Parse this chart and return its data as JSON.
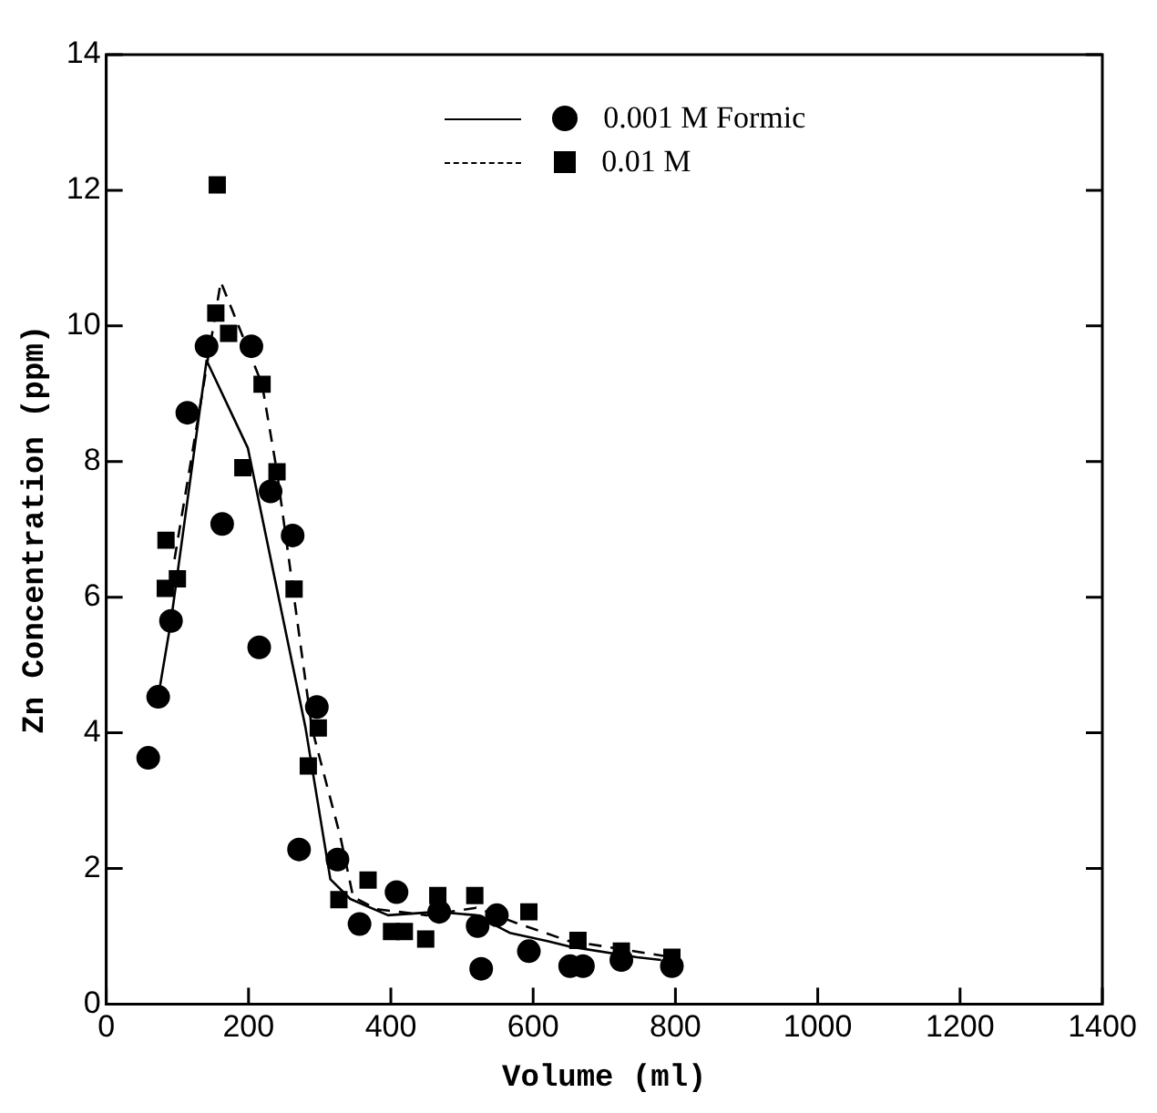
{
  "chart_data": {
    "type": "scatter",
    "xlabel": "Volume (ml)",
    "ylabel": "Zn Concentration (ppm)",
    "xlim": [
      0,
      1400
    ],
    "xticks": [
      0,
      200,
      400,
      600,
      800,
      1000,
      1200,
      1400
    ],
    "ylim": [
      0,
      14
    ],
    "yticks": [
      0,
      2,
      4,
      6,
      8,
      10,
      12,
      14
    ],
    "grid": false,
    "legend": "top right",
    "series": [
      {
        "name": "0.001 M Formic",
        "type": "scatter",
        "marker": "circle",
        "color": "#000000",
        "x": [
          59,
          73,
          91,
          114,
          141,
          163,
          204,
          215,
          231,
          262,
          271,
          296,
          325,
          356,
          408,
          468,
          522,
          527,
          549,
          594,
          652,
          670,
          724,
          795
        ],
        "values": [
          3.63,
          4.53,
          5.65,
          8.72,
          9.7,
          7.08,
          9.7,
          5.26,
          7.56,
          6.91,
          2.28,
          4.38,
          2.13,
          1.18,
          1.65,
          1.36,
          1.15,
          0.52,
          1.31,
          0.78,
          0.56,
          0.56,
          0.65,
          0.56
        ]
      },
      {
        "name": "0.01 M",
        "type": "scatter",
        "marker": "square",
        "color": "#000000",
        "x": [
          83,
          84,
          100,
          154,
          156,
          172,
          192,
          219,
          240,
          264,
          284,
          298,
          327,
          368,
          401,
          419,
          449,
          466,
          518,
          594,
          663,
          724,
          795
        ],
        "values": [
          6.13,
          6.84,
          6.27,
          10.19,
          12.08,
          9.89,
          7.91,
          9.14,
          7.85,
          6.12,
          3.51,
          4.07,
          1.54,
          1.83,
          1.07,
          1.07,
          0.96,
          1.6,
          1.6,
          1.36,
          0.94,
          0.78,
          0.69
        ]
      },
      {
        "type": "line",
        "line_style": "solid",
        "marker": "none",
        "color": "#000000",
        "x": [
          73,
          91,
          141,
          199,
          280,
          315,
          343,
          396,
          465,
          520,
          567,
          620,
          650,
          746,
          780
        ],
        "values": [
          4.53,
          5.65,
          9.49,
          8.2,
          4.08,
          1.84,
          1.55,
          1.31,
          1.36,
          1.31,
          1.05,
          0.93,
          0.85,
          0.69,
          0.65
        ]
      },
      {
        "type": "line",
        "line_style": "dashed",
        "marker": "none",
        "color": "#000000",
        "x": [
          96,
          161,
          219,
          240,
          289,
          329,
          347,
          380,
          450,
          520,
          575,
          650,
          700,
          795
        ],
        "values": [
          6.56,
          10.65,
          9.14,
          7.85,
          4.07,
          2.47,
          1.58,
          1.4,
          1.31,
          1.42,
          1.2,
          0.93,
          0.85,
          0.69
        ]
      }
    ]
  }
}
